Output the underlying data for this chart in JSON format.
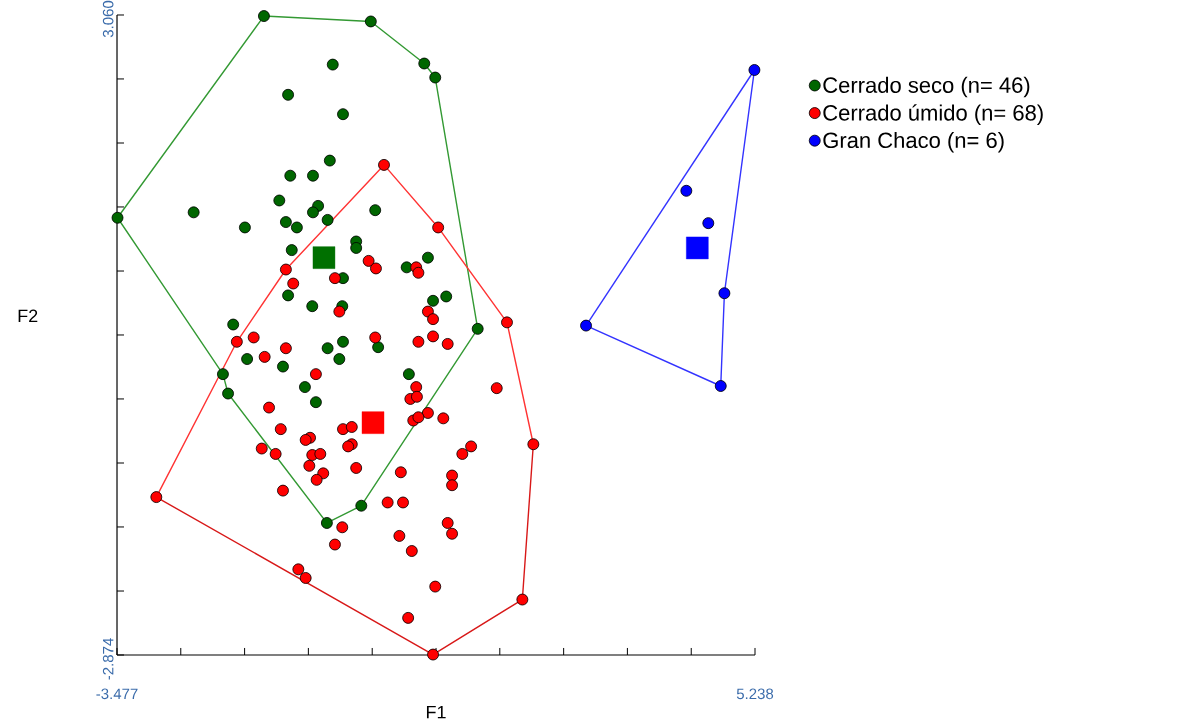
{
  "chart_data": {
    "type": "scatter",
    "xlabel": "F1",
    "ylabel": "F2",
    "xlim": [
      -3.477,
      5.238
    ],
    "ylim": [
      -2.874,
      3.06
    ],
    "xticks": [
      -3.477,
      {
        "value": -2.606,
        "label": null
      },
      {
        "value": -1.734,
        "label": null
      },
      {
        "value": -0.863,
        "label": null
      },
      {
        "value": 0.009,
        "label": null
      },
      {
        "value": 0.881,
        "label": null
      },
      {
        "value": 1.752,
        "label": null
      },
      {
        "value": 2.624,
        "label": null
      },
      {
        "value": 3.495,
        "label": null
      },
      {
        "value": 4.367,
        "label": null
      },
      5.238
    ],
    "yticks": [
      -2.874,
      {
        "value": -2.281,
        "label": null
      },
      {
        "value": -1.687,
        "label": null
      },
      {
        "value": -1.094,
        "label": null
      },
      {
        "value": -0.5,
        "label": null
      },
      {
        "value": 0.093,
        "label": null
      },
      {
        "value": 0.686,
        "label": null
      },
      {
        "value": 1.28,
        "label": null
      },
      {
        "value": 1.873,
        "label": null
      },
      {
        "value": 2.467,
        "label": null
      },
      {
        "value": 3.06,
        "label": "3.060"
      }
    ],
    "legend": "top right",
    "series": [
      {
        "name": "Cerrado seco (n= 46)",
        "marker": "circle",
        "color": "#006600",
        "x": [
          -1.47,
          -0.01,
          0.72,
          0.87,
          -0.53,
          -1.14,
          -0.39,
          -0.57,
          -1.11,
          -0.8,
          -1.26,
          -0.73,
          -0.8,
          -2.43,
          -3.47,
          -1.73,
          -1.17,
          -1.02,
          -0.6,
          0.05,
          -0.21,
          -0.21,
          -1.09,
          0.77,
          0.48,
          -0.39,
          -1.14,
          -0.81,
          -0.4,
          0.84,
          1.02,
          1.45,
          -1.89,
          -0.39,
          -0.6,
          0.09,
          -1.7,
          -0.44,
          -1.21,
          -2.03,
          0.51,
          -0.91,
          -1.96,
          -0.76,
          -0.61,
          -0.14
        ],
        "values": [
          3.05,
          3.0,
          2.61,
          2.48,
          2.6,
          2.32,
          2.14,
          1.71,
          1.57,
          1.57,
          1.34,
          1.29,
          1.23,
          1.23,
          1.18,
          1.09,
          1.14,
          1.09,
          1.16,
          1.25,
          0.96,
          0.9,
          0.88,
          0.81,
          0.72,
          0.62,
          0.46,
          0.36,
          0.36,
          0.41,
          0.45,
          0.15,
          0.19,
          0.03,
          -0.03,
          -0.02,
          -0.13,
          -0.13,
          -0.2,
          -0.27,
          -0.27,
          -0.39,
          -0.45,
          -0.53,
          -1.65,
          -1.49
        ]
      },
      {
        "name": "Cerrado úmido (n= 68)",
        "marker": "circle",
        "color": "#ff0000",
        "x": [
          0.17,
          0.91,
          -0.04,
          0.06,
          0.61,
          0.64,
          -1.17,
          -1.07,
          -0.5,
          -0.44,
          0.77,
          0.84,
          1.85,
          -1.84,
          -1.61,
          -1.17,
          -1.46,
          0.05,
          0.64,
          0.84,
          1.04,
          -0.76,
          0.61,
          0.53,
          0.62,
          1.71,
          -1.4,
          0.77,
          0.98,
          0.57,
          0.64,
          -1.24,
          -0.84,
          -0.39,
          -0.27,
          -0.27,
          1.36,
          1.24,
          2.21,
          -1.5,
          -1.31,
          -0.81,
          -0.7,
          -0.85,
          -0.66,
          -0.75,
          -0.21,
          0.4,
          1.1,
          1.1,
          -1.21,
          -2.94,
          0.22,
          0.43,
          -0.4,
          -0.5,
          1.04,
          1.1,
          0.38,
          0.55,
          -1.0,
          -0.9,
          0.87,
          2.06,
          0.5,
          0.84,
          -0.9,
          -0.32
        ],
        "values": [
          1.67,
          1.09,
          0.78,
          0.71,
          0.72,
          0.67,
          0.7,
          0.57,
          0.62,
          0.31,
          0.31,
          0.24,
          0.21,
          0.03,
          0.07,
          -0.03,
          -0.11,
          0.07,
          0.03,
          0.08,
          0.01,
          -0.27,
          -0.39,
          -0.5,
          -0.48,
          -0.4,
          -0.58,
          -0.63,
          -0.68,
          -0.7,
          -0.67,
          -0.78,
          -0.86,
          -0.78,
          -0.76,
          -0.92,
          -0.94,
          -1.01,
          -0.92,
          -0.96,
          -1.01,
          -1.02,
          -1.01,
          -1.12,
          -1.19,
          -1.25,
          -1.14,
          -1.18,
          -1.21,
          -1.3,
          -1.35,
          -1.41,
          -1.46,
          -1.46,
          -1.69,
          -1.85,
          -1.65,
          -1.75,
          -1.77,
          -1.91,
          -2.08,
          -2.16,
          -2.24,
          -2.36,
          -2.53,
          -2.87,
          -0.88,
          -0.94
        ]
      },
      {
        "name": "Gran Chaco (n= 6)",
        "marker": "circle",
        "color": "#0000ff",
        "x": [
          5.23,
          4.3,
          4.6,
          4.82,
          2.93,
          4.77
        ],
        "values": [
          2.55,
          1.43,
          1.13,
          0.48,
          0.18,
          -0.38
        ]
      },
      {
        "marker": "square",
        "color": "#007000",
        "x": [
          -0.65
        ],
        "values": [
          0.81
        ]
      },
      {
        "marker": "square",
        "color": "#ff0000",
        "x": [
          0.02
        ],
        "values": [
          -0.72
        ]
      },
      {
        "marker": "square",
        "color": "#0000ff",
        "x": [
          4.45
        ],
        "values": [
          0.9
        ]
      },
      {
        "type": "line",
        "marker": "none",
        "color": "#339933",
        "x": [
          -3.47,
          -1.47,
          -0.01,
          0.72,
          0.87,
          1.45
        ],
        "values": [
          1.18,
          3.05,
          3.0,
          2.61,
          2.48,
          0.15
        ]
      },
      {
        "type": "line",
        "marker": "none",
        "color": "#339933",
        "x": [
          -3.47,
          -2.03,
          -1.96,
          -0.61,
          -0.14,
          1.45
        ],
        "values": [
          1.18,
          -0.27,
          -0.45,
          -1.65,
          -1.49,
          0.15
        ]
      },
      {
        "type": "line",
        "marker": "none",
        "color": "#ff3333",
        "x": [
          -2.94,
          -1.84,
          -1.17,
          0.17,
          0.91,
          1.85,
          2.21
        ],
        "values": [
          -1.41,
          0.03,
          0.7,
          1.67,
          1.09,
          0.21,
          -0.92
        ]
      },
      {
        "type": "line",
        "marker": "none",
        "color": "#d81818",
        "x": [
          -2.94,
          0.84,
          2.06,
          2.21
        ],
        "values": [
          -1.41,
          -2.87,
          -2.36,
          -0.92
        ]
      },
      {
        "type": "line",
        "marker": "none",
        "color": "#3333ff",
        "x": [
          2.93,
          5.23
        ],
        "values": [
          0.18,
          2.55
        ]
      },
      {
        "type": "line",
        "marker": "none",
        "color": "#3333ff",
        "x": [
          2.93,
          4.77,
          4.82,
          5.23
        ],
        "values": [
          0.18,
          -0.38,
          0.48,
          2.55
        ]
      }
    ]
  }
}
